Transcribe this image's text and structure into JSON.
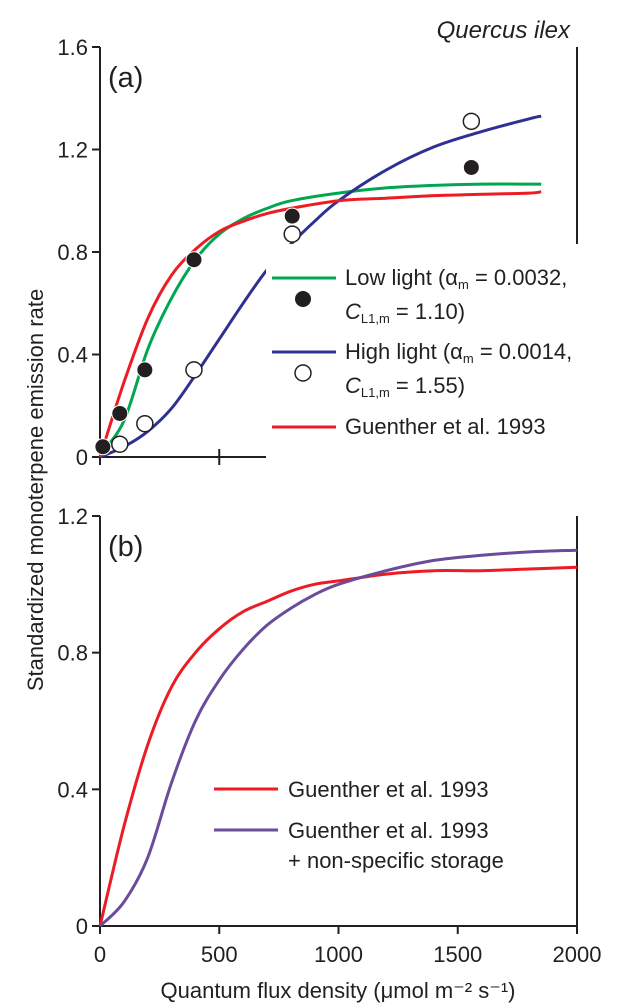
{
  "figure": {
    "species": "Quercus ilex",
    "ylabel": "Standardized monoterpene emission rate",
    "xlabel": "Quantum flux density (μmol m⁻² s⁻¹)"
  },
  "chart_data": [
    {
      "type": "line",
      "panel_label": "(a)",
      "xlim": [
        0,
        2000
      ],
      "ylim": [
        0,
        1.6
      ],
      "xticks": [
        0,
        500,
        1000,
        1500,
        2000
      ],
      "xtick_labels": [],
      "yticks": [
        0,
        0.4,
        0.8,
        1.2,
        1.6
      ],
      "ytick_labels": [
        "0",
        "0.4",
        "0.8",
        "1.2",
        "1.6"
      ],
      "series": [
        {
          "name": "Low light (αm = 0.0032, CL1,m = 1.10)",
          "legend_line1": "Low light (α",
          "legend_sub1": "m",
          "legend_rest1": " = 0.0032,",
          "legend_line2_c": "C",
          "legend_sub2": "L1,m",
          "legend_rest2": " = 1.10)",
          "color": "#00a651",
          "marker": "filled-circle",
          "x": [
            0,
            100,
            200,
            300,
            400,
            500,
            600,
            700,
            800,
            1000,
            1200,
            1400,
            1600,
            1800,
            1850
          ],
          "y": [
            0.01,
            0.14,
            0.42,
            0.62,
            0.77,
            0.87,
            0.93,
            0.97,
            1.0,
            1.03,
            1.05,
            1.06,
            1.065,
            1.065,
            1.065
          ],
          "points_x": [
            12,
            83,
            188,
            394,
            806,
            1557
          ],
          "points_y": [
            0.04,
            0.17,
            0.34,
            0.77,
            0.94,
            1.13
          ]
        },
        {
          "name": "High light (αm = 0.0014, CL1,m = 1.55)",
          "legend_line1": "High light (α",
          "legend_sub1": "m",
          "legend_rest1": " = 0.0014,",
          "legend_line2_c": "C",
          "legend_sub2": "L1,m",
          "legend_rest2": " = 1.55)",
          "color": "#2e3192",
          "marker": "open-circle",
          "x": [
            0,
            100,
            200,
            300,
            400,
            500,
            600,
            700,
            800,
            900,
            1000,
            1200,
            1400,
            1600,
            1800,
            1850
          ],
          "y": [
            0.0,
            0.04,
            0.1,
            0.19,
            0.32,
            0.46,
            0.6,
            0.73,
            0.83,
            0.92,
            1.0,
            1.12,
            1.21,
            1.27,
            1.32,
            1.33
          ],
          "points_x": [
            83,
            188,
            394,
            806,
            1557
          ],
          "points_y": [
            0.05,
            0.13,
            0.34,
            0.87,
            1.31
          ]
        },
        {
          "name": "Guenther et al. 1993",
          "color": "#ed1c24",
          "x": [
            0,
            100,
            200,
            300,
            400,
            500,
            600,
            700,
            800,
            1000,
            1200,
            1400,
            1600,
            1800,
            1850
          ],
          "y": [
            0.0,
            0.29,
            0.54,
            0.71,
            0.81,
            0.88,
            0.92,
            0.95,
            0.97,
            1.0,
            1.01,
            1.02,
            1.025,
            1.03,
            1.035
          ]
        }
      ]
    },
    {
      "type": "line",
      "panel_label": "(b)",
      "xlim": [
        0,
        2000
      ],
      "ylim": [
        0,
        1.2
      ],
      "xticks": [
        0,
        500,
        1000,
        1500,
        2000
      ],
      "xtick_labels": [
        "0",
        "500",
        "1000",
        "1500",
        "2000"
      ],
      "yticks": [
        0,
        0.4,
        0.8,
        1.2
      ],
      "ytick_labels": [
        "0",
        "0.4",
        "0.8",
        "1.2"
      ],
      "series": [
        {
          "name": "Guenther et al. 1993",
          "color": "#ed1c24",
          "x": [
            0,
            100,
            200,
            300,
            400,
            500,
            600,
            700,
            800,
            900,
            1000,
            1200,
            1400,
            1600,
            1800,
            2000
          ],
          "y": [
            0.0,
            0.29,
            0.53,
            0.7,
            0.8,
            0.87,
            0.92,
            0.95,
            0.98,
            1.0,
            1.01,
            1.03,
            1.04,
            1.04,
            1.045,
            1.05
          ]
        },
        {
          "name": "Guenther et al. 1993 + non-specific storage",
          "legend_line1": "Guenther et al. 1993",
          "legend_line2": "+ non-specific storage",
          "color": "#6b4c9a",
          "x": [
            0,
            100,
            200,
            300,
            400,
            500,
            600,
            700,
            800,
            900,
            1000,
            1200,
            1400,
            1600,
            1800,
            2000
          ],
          "y": [
            0.0,
            0.07,
            0.2,
            0.42,
            0.6,
            0.72,
            0.81,
            0.88,
            0.93,
            0.97,
            1.0,
            1.04,
            1.07,
            1.085,
            1.095,
            1.1
          ]
        }
      ]
    }
  ]
}
